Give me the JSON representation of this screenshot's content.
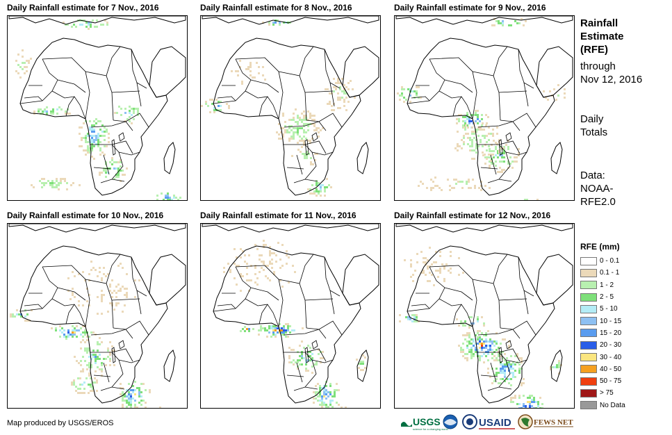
{
  "panels": [
    {
      "title": "Daily Rainfall estimate for 7 Nov., 2016",
      "seed": 7
    },
    {
      "title": "Daily Rainfall estimate for 8 Nov., 2016",
      "seed": 8
    },
    {
      "title": "Daily Rainfall estimate for 9 Nov., 2016",
      "seed": 9
    },
    {
      "title": "Daily Rainfall estimate for 10 Nov., 2016",
      "seed": 10
    },
    {
      "title": "Daily Rainfall estimate for 11 Nov., 2016",
      "seed": 11
    },
    {
      "title": "Daily Rainfall estimate for 12 Nov., 2016",
      "seed": 12
    }
  ],
  "sidebar": {
    "title_line1": "Rainfall",
    "title_line2": "Estimate",
    "title_line3": "(RFE)",
    "through_label": "through",
    "through_date": "Nov 12, 2016",
    "totals_line1": "Daily",
    "totals_line2": "Totals",
    "data_label": "Data:",
    "data_source1": "NOAA-",
    "data_source2": "RFE2.0"
  },
  "legend": {
    "title": "RFE (mm)",
    "items": [
      {
        "label": "0 - 0.1",
        "color": "#ffffff"
      },
      {
        "label": "0.1 - 1",
        "color": "#ebd9b9"
      },
      {
        "label": "1 - 2",
        "color": "#b8f0b0"
      },
      {
        "label": "2 - 5",
        "color": "#7ee07a"
      },
      {
        "label": "5 - 10",
        "color": "#b4ecf6"
      },
      {
        "label": "10 - 15",
        "color": "#8ec0f2"
      },
      {
        "label": "15 - 20",
        "color": "#5a9cef"
      },
      {
        "label": "20 - 30",
        "color": "#2a5ee8"
      },
      {
        "label": "30 - 40",
        "color": "#fbe680"
      },
      {
        "label": "40 - 50",
        "color": "#f5a020"
      },
      {
        "label": "50 - 75",
        "color": "#f04010"
      },
      {
        "label": "> 75",
        "color": "#a01818"
      },
      {
        "label": "No Data",
        "color": "#999999"
      }
    ]
  },
  "footer": {
    "credit": "Map produced by USGS/EROS"
  },
  "logos": {
    "usgs": "USGS",
    "usgs_tagline": "science for a changing world",
    "usaid": "USAID",
    "fewsnet": "FEWS NET"
  }
}
